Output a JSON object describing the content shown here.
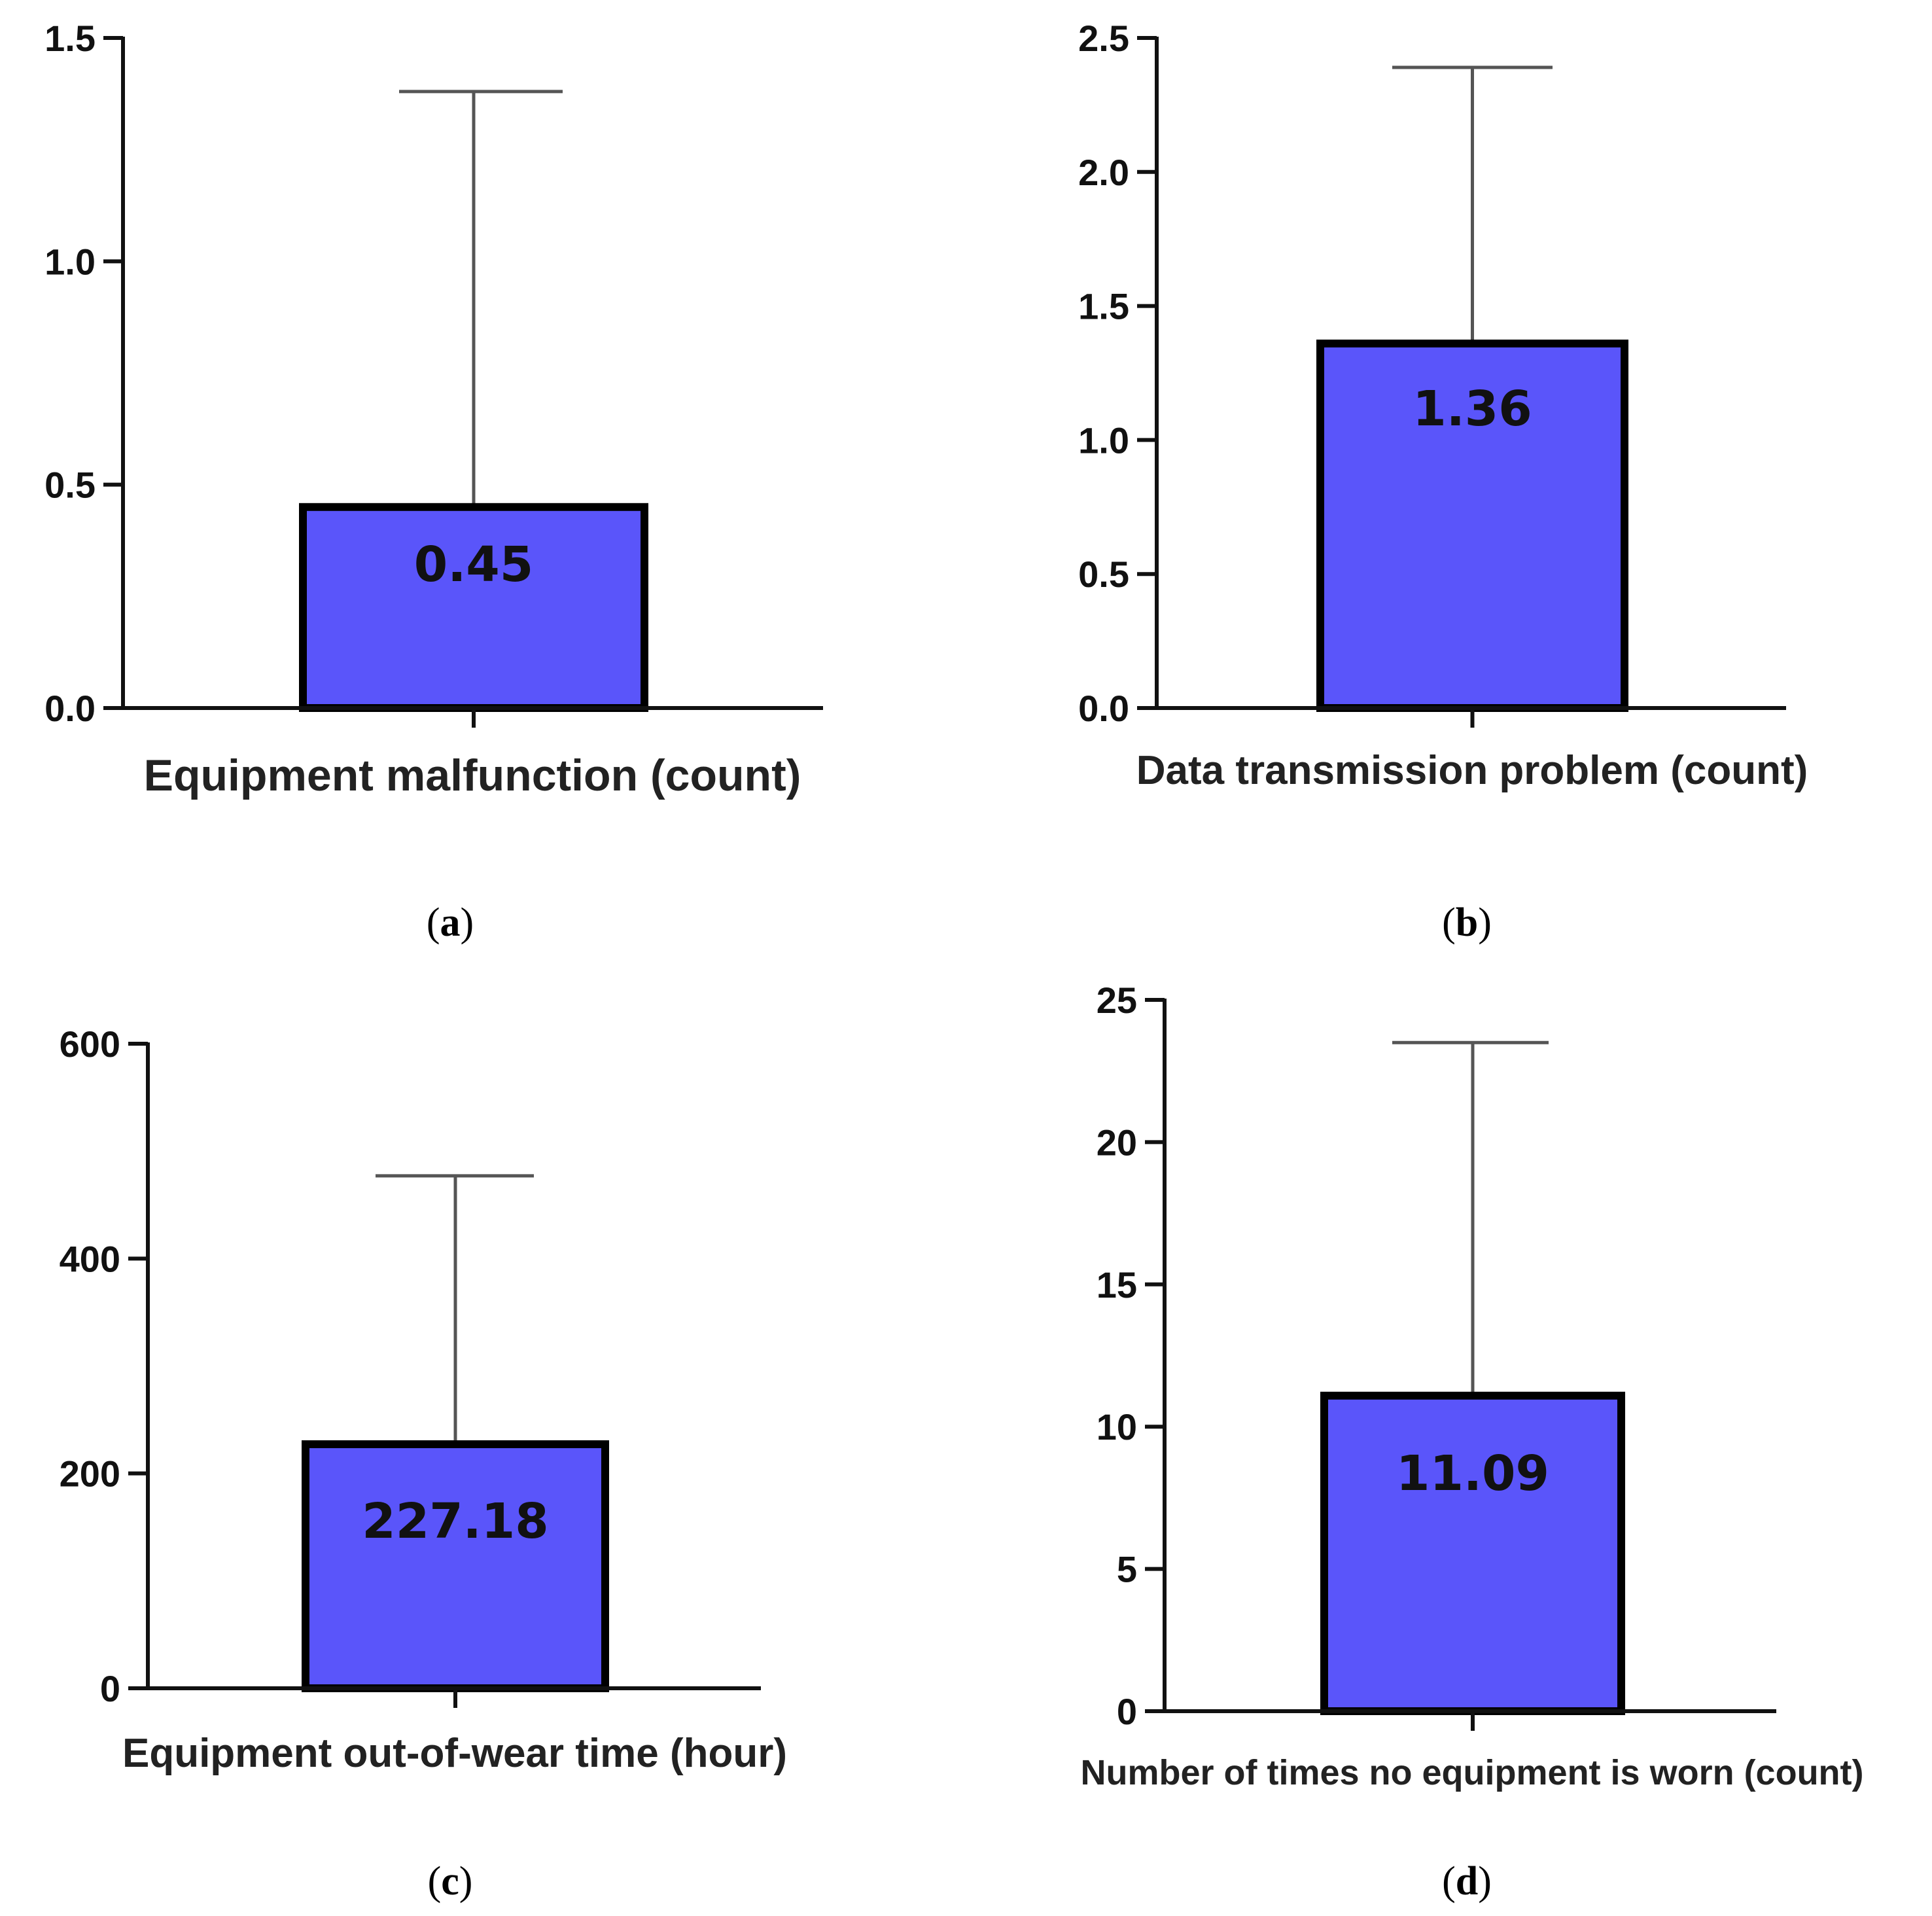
{
  "colors": {
    "bar_fill": "#5a55fa",
    "bar_stroke": "#000000",
    "axis": "#111111",
    "error_bar": "#555555"
  },
  "chart_data": [
    {
      "id": "a",
      "type": "bar",
      "panel_label": "a",
      "categories": [
        "Equipment malfunction (count)"
      ],
      "xlabel": "Equipment malfunction (count)",
      "values": [
        0.45
      ],
      "value_labels": [
        "0.45"
      ],
      "error_upper": [
        1.38
      ],
      "ylim": [
        0,
        1.5
      ],
      "yticks": [
        0,
        0.5,
        1.0,
        1.5
      ],
      "ytick_labels": [
        "0.0",
        "0.5",
        "1.0",
        "1.5"
      ]
    },
    {
      "id": "b",
      "type": "bar",
      "panel_label": "b",
      "categories": [
        "Data transmission problem (count)"
      ],
      "xlabel": "Data transmission problem (count)",
      "values": [
        1.36
      ],
      "value_labels": [
        "1.36"
      ],
      "error_upper": [
        2.39
      ],
      "ylim": [
        0,
        2.5
      ],
      "yticks": [
        0,
        0.5,
        1.0,
        1.5,
        2.0,
        2.5
      ],
      "ytick_labels": [
        "0.0",
        "0.5",
        "1.0",
        "1.5",
        "2.0",
        "2.5"
      ]
    },
    {
      "id": "c",
      "type": "bar",
      "panel_label": "c",
      "categories": [
        "Equipment out-of-wear time (hour)"
      ],
      "xlabel": "Equipment out-of-wear time (hour)",
      "values": [
        227.18
      ],
      "value_labels": [
        "227.18"
      ],
      "error_upper": [
        477
      ],
      "ylim": [
        0,
        600
      ],
      "yticks": [
        0,
        200,
        400,
        600
      ],
      "ytick_labels": [
        "0",
        "200",
        "400",
        "600"
      ]
    },
    {
      "id": "d",
      "type": "bar",
      "panel_label": "d",
      "categories": [
        "Number of times no equipment is worn (count)"
      ],
      "xlabel": "Number of times no equipment is worn (count)",
      "values": [
        11.09
      ],
      "value_labels": [
        "11.09"
      ],
      "error_upper": [
        23.5
      ],
      "ylim": [
        0,
        25
      ],
      "yticks": [
        0,
        5,
        10,
        15,
        20,
        25
      ],
      "ytick_labels": [
        "0",
        "5",
        "10",
        "15",
        "20",
        "25"
      ]
    }
  ]
}
